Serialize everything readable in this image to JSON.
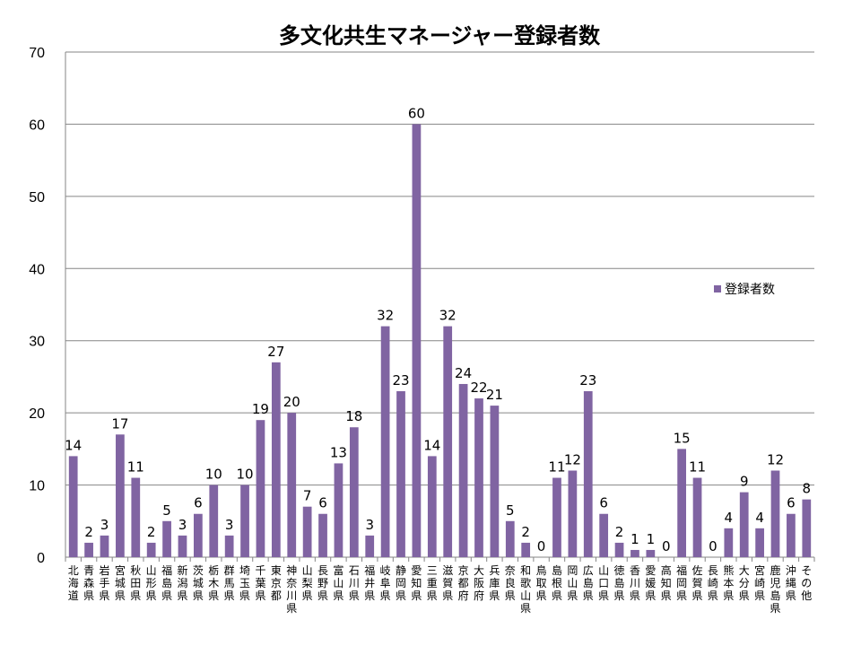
{
  "chart_data": {
    "type": "bar",
    "title": "多文化共生マネージャー登録者数",
    "xlabel": "",
    "ylabel": "",
    "ylim": [
      0,
      70
    ],
    "yticks": [
      0,
      10,
      20,
      30,
      40,
      50,
      60,
      70
    ],
    "grid": true,
    "legend_position": "right",
    "categories": [
      "北海道",
      "青森県",
      "岩手県",
      "宮城県",
      "秋田県",
      "山形県",
      "福島県",
      "新潟県",
      "茨城県",
      "栃木県",
      "群馬県",
      "埼玉県",
      "千葉県",
      "東京都",
      "神奈川県",
      "山梨県",
      "長野県",
      "富山県",
      "石川県",
      "福井県",
      "岐阜県",
      "静岡県",
      "愛知県",
      "三重県",
      "滋賀県",
      "京都府",
      "大阪府",
      "兵庫県",
      "奈良県",
      "和歌山県",
      "鳥取県",
      "島根県",
      "岡山県",
      "広島県",
      "山口県",
      "徳島県",
      "香川県",
      "愛媛県",
      "高知県",
      "福岡県",
      "佐賀県",
      "長崎県",
      "熊本県",
      "大分県",
      "宮崎県",
      "鹿児島県",
      "沖縄県",
      "その他"
    ],
    "series": [
      {
        "name": "登録者数",
        "color": "#8064A2",
        "values": [
          14,
          2,
          3,
          17,
          11,
          2,
          5,
          3,
          6,
          10,
          3,
          10,
          19,
          27,
          20,
          7,
          6,
          13,
          18,
          3,
          32,
          23,
          60,
          14,
          32,
          24,
          22,
          21,
          5,
          2,
          0,
          11,
          12,
          23,
          6,
          2,
          1,
          1,
          0,
          15,
          11,
          0,
          4,
          9,
          4,
          12,
          6,
          8
        ]
      }
    ]
  }
}
